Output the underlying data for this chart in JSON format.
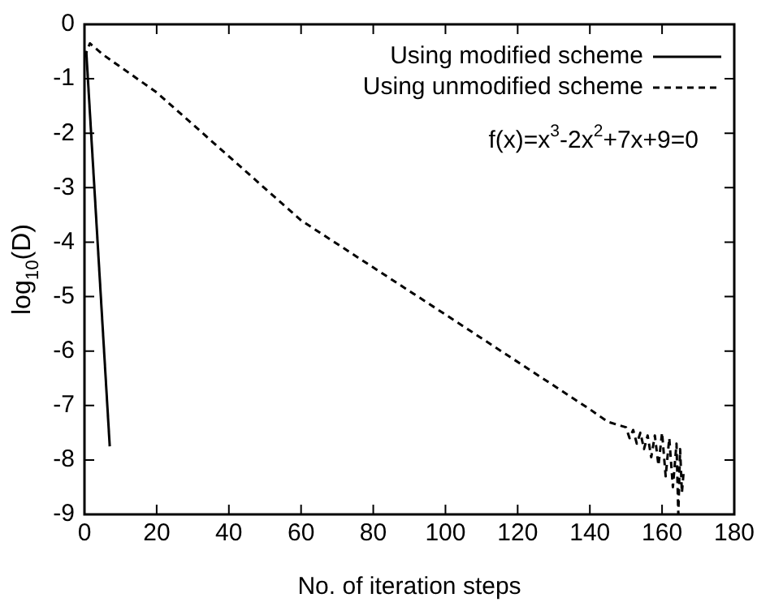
{
  "chart_data": {
    "type": "line",
    "xlabel": "No. of iteration steps",
    "ylabel": "log$_{10}$(D)",
    "xlim": [
      0,
      180
    ],
    "xticks": [
      0,
      20,
      40,
      60,
      80,
      100,
      120,
      140,
      160,
      180
    ],
    "ylim": [
      -9,
      0
    ],
    "yticks": [
      -9,
      -8,
      -7,
      -6,
      -5,
      -4,
      -3,
      -2,
      -1,
      0
    ],
    "grid": false,
    "legend": "top right",
    "marker": "none",
    "annotations": [
      "f(x)=x$^{3}$-2x$^{2}$+7x+9=0"
    ],
    "series": [
      {
        "name": "Using modified scheme",
        "color": "#000000",
        "line_style": "solid",
        "x": [
          0.5,
          7
        ],
        "values": [
          -0.5,
          -7.75
        ]
      },
      {
        "name": "Using unmodified scheme",
        "color": "#000000",
        "line_style": "dashed",
        "x": [
          0,
          1.5,
          5,
          20,
          60,
          100,
          140,
          145,
          150,
          151,
          152,
          153,
          154,
          155,
          156,
          157,
          158,
          159,
          160,
          161,
          162,
          163,
          164,
          164.5,
          165,
          165.5,
          166
        ],
        "values": [
          -0.6,
          -0.35,
          -0.55,
          -1.25,
          -3.6,
          -5.33,
          -7.07,
          -7.3,
          -7.4,
          -7.6,
          -7.45,
          -7.7,
          -7.5,
          -7.8,
          -7.55,
          -7.95,
          -7.55,
          -8.1,
          -7.5,
          -8.3,
          -7.6,
          -8.5,
          -7.7,
          -9,
          -7.8,
          -8.6,
          -8.2
        ]
      }
    ]
  }
}
